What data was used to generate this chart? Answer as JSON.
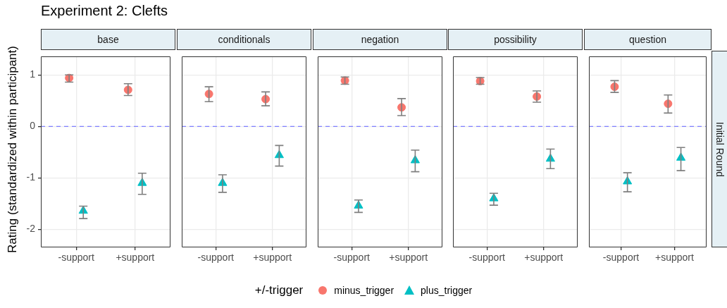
{
  "chart_data": [
    {
      "type": "scatter",
      "title": "base",
      "annotations": [
        "Experiment 2: Clefts"
      ],
      "legend": "bottom",
      "legend_title": "+/-trigger",
      "ylabel": "Rating (standardized within participant)",
      "categories": [
        "-support",
        "+support"
      ],
      "ylim": [
        -2.35,
        1.36
      ],
      "yticks": [
        -2,
        -1,
        0,
        1
      ],
      "grid": true,
      "ref_lines": [
        {
          "axis": "y",
          "value": 0,
          "color": "#7f7fff",
          "line_style": "dashed"
        }
      ],
      "series": [
        {
          "name": "minus_trigger",
          "color": "#f8766d",
          "marker": "circle",
          "values": [
            0.94,
            0.71
          ],
          "errors": [
            [
              0.86,
              1.0
            ],
            [
              0.6,
              0.83
            ]
          ]
        },
        {
          "name": "plus_trigger",
          "color": "#00bfc4",
          "marker": "triangle",
          "values": [
            -1.64,
            -1.1
          ],
          "errors": [
            [
              -1.79,
              -1.55
            ],
            [
              -1.32,
              -0.91
            ]
          ]
        }
      ]
    },
    {
      "type": "scatter",
      "title": "conditionals",
      "categories": [
        "-support",
        "+support"
      ],
      "ylim": [
        -2.35,
        1.36
      ],
      "yticks": [
        -2,
        -1,
        0,
        1
      ],
      "grid": true,
      "tick_labels": "x",
      "ref_lines": [
        {
          "axis": "y",
          "value": 0,
          "color": "#7f7fff",
          "line_style": "dashed"
        }
      ],
      "series": [
        {
          "color": "#f8766d",
          "marker": "circle",
          "values": [
            0.63,
            0.53
          ],
          "errors": [
            [
              0.48,
              0.77
            ],
            [
              0.4,
              0.67
            ]
          ]
        },
        {
          "color": "#00bfc4",
          "marker": "triangle",
          "values": [
            -1.1,
            -0.56
          ],
          "errors": [
            [
              -1.28,
              -0.94
            ],
            [
              -0.77,
              -0.37
            ]
          ]
        }
      ]
    },
    {
      "type": "scatter",
      "title": "negation",
      "categories": [
        "-support",
        "+support"
      ],
      "ylim": [
        -2.35,
        1.36
      ],
      "yticks": [
        -2,
        -1,
        0,
        1
      ],
      "grid": true,
      "tick_labels": "x",
      "ref_lines": [
        {
          "axis": "y",
          "value": 0,
          "color": "#7f7fff",
          "line_style": "dashed"
        }
      ],
      "series": [
        {
          "color": "#f8766d",
          "marker": "circle",
          "values": [
            0.89,
            0.37
          ],
          "errors": [
            [
              0.82,
              0.96
            ],
            [
              0.21,
              0.54
            ]
          ]
        },
        {
          "color": "#00bfc4",
          "marker": "triangle",
          "values": [
            -1.54,
            -0.66
          ],
          "errors": [
            [
              -1.67,
              -1.43
            ],
            [
              -0.88,
              -0.46
            ]
          ]
        }
      ]
    },
    {
      "type": "scatter",
      "title": "possibility",
      "categories": [
        "-support",
        "+support"
      ],
      "ylim": [
        -2.35,
        1.36
      ],
      "yticks": [
        -2,
        -1,
        0,
        1
      ],
      "grid": true,
      "tick_labels": "x",
      "ref_lines": [
        {
          "axis": "y",
          "value": 0,
          "color": "#7f7fff",
          "line_style": "dashed"
        }
      ],
      "series": [
        {
          "color": "#f8766d",
          "marker": "circle",
          "values": [
            0.88,
            0.58
          ],
          "errors": [
            [
              0.82,
              0.95
            ],
            [
              0.47,
              0.69
            ]
          ]
        },
        {
          "color": "#00bfc4",
          "marker": "triangle",
          "values": [
            -1.4,
            -0.63
          ],
          "errors": [
            [
              -1.53,
              -1.3
            ],
            [
              -0.82,
              -0.44
            ]
          ]
        }
      ]
    },
    {
      "type": "scatter",
      "title": "question",
      "annotations": [
        "Initial Round"
      ],
      "categories": [
        "-support",
        "+support"
      ],
      "ylim": [
        -2.35,
        1.36
      ],
      "yticks": [
        -2,
        -1,
        0,
        1
      ],
      "grid": true,
      "tick_labels": "x",
      "ref_lines": [
        {
          "axis": "y",
          "value": 0,
          "color": "#7f7fff",
          "line_style": "dashed"
        }
      ],
      "series": [
        {
          "color": "#f8766d",
          "marker": "circle",
          "values": [
            0.77,
            0.44
          ],
          "errors": [
            [
              0.66,
              0.89
            ],
            [
              0.26,
              0.61
            ]
          ]
        },
        {
          "color": "#00bfc4",
          "marker": "triangle",
          "values": [
            -1.07,
            -0.61
          ],
          "errors": [
            [
              -1.27,
              -0.9
            ],
            [
              -0.86,
              -0.41
            ]
          ]
        }
      ]
    }
  ]
}
